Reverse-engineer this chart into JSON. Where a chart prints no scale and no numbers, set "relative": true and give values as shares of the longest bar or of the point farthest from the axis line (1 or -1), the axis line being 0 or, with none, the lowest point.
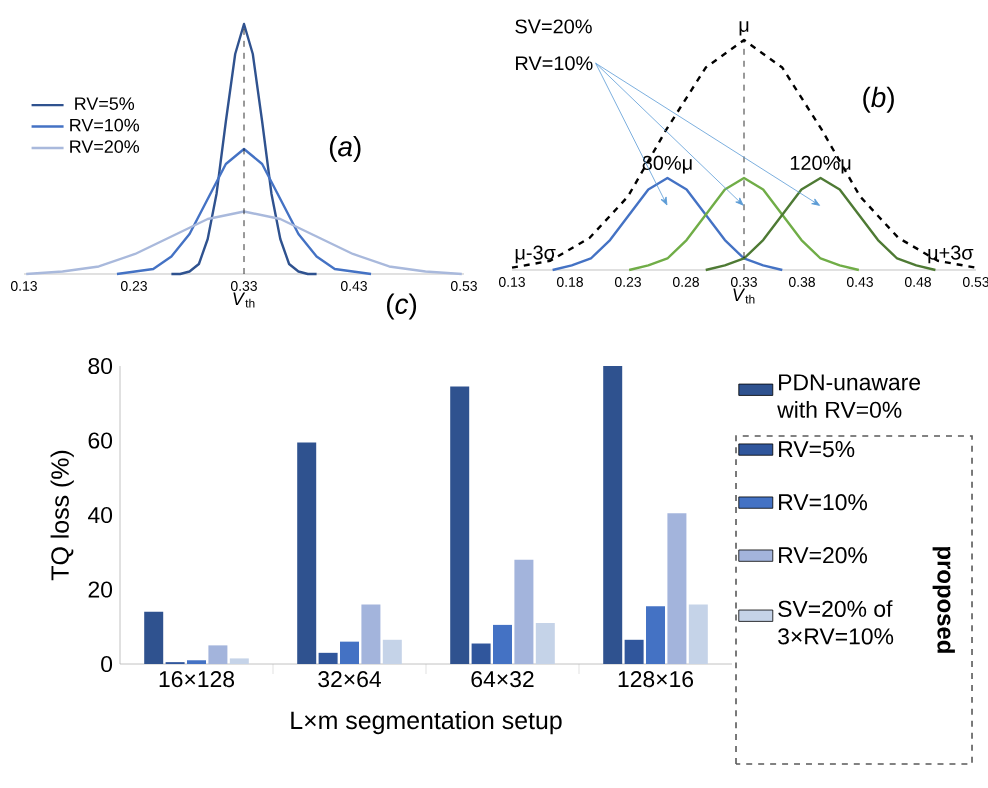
{
  "chart_data": [
    {
      "type": "line",
      "title": "(*a*)",
      "xlabel": "*V*$_{th}$",
      "relative": true,
      "xlim": [
        0.13,
        0.53
      ],
      "xticks": [
        0.13,
        0.23,
        0.33,
        0.43,
        0.53
      ],
      "tick_labels": "x",
      "legend": "top left",
      "ref_lines": [
        {
          "axis": "x",
          "value": 0.33,
          "line_style": "dashed"
        }
      ],
      "series": [
        {
          "name": "RV=5%",
          "color": "#2f528f",
          "x": [
            0.264,
            0.272,
            0.2805,
            0.289,
            0.297,
            0.305,
            0.3135,
            0.322,
            0.33,
            0.338,
            0.3465,
            0.355,
            0.363,
            0.371,
            0.3795,
            0.388,
            0.396
          ],
          "values": [
            0,
            0,
            0.01,
            0.04,
            0.14,
            0.32,
            0.61,
            0.88,
            1,
            0.88,
            0.61,
            0.32,
            0.14,
            0.04,
            0.01,
            0,
            0
          ]
        },
        {
          "name": "RV=10%",
          "color": "#4472c4",
          "x": [
            0.2145,
            0.231,
            0.2475,
            0.264,
            0.2805,
            0.297,
            0.3135,
            0.33,
            0.3465,
            0.363,
            0.3795,
            0.396,
            0.4125,
            0.429,
            0.4455
          ],
          "values": [
            0,
            0.01,
            0.02,
            0.07,
            0.16,
            0.3,
            0.44,
            0.5,
            0.44,
            0.3,
            0.16,
            0.07,
            0.02,
            0.01,
            0
          ]
        },
        {
          "name": "RV=20%",
          "color": "#a9b9dc",
          "x": [
            0.132,
            0.165,
            0.198,
            0.231,
            0.264,
            0.297,
            0.33,
            0.363,
            0.396,
            0.429,
            0.462,
            0.495,
            0.528
          ],
          "values": [
            0,
            0.01,
            0.03,
            0.08,
            0.15,
            0.22,
            0.25,
            0.22,
            0.15,
            0.08,
            0.03,
            0.01,
            0
          ]
        }
      ]
    },
    {
      "type": "line",
      "title": "(*b*)",
      "xlabel": "*V*$_{th}$",
      "relative": true,
      "xlim": [
        0.13,
        0.53
      ],
      "xticks": [
        0.13,
        0.18,
        0.23,
        0.28,
        0.33,
        0.38,
        0.43,
        0.48,
        0.53
      ],
      "tick_labels": "x",
      "ref_lines": [
        {
          "axis": "x",
          "value": 0.33,
          "line_style": "dashed"
        }
      ],
      "annotations": [
        "SV=20%",
        "RV=10%",
        {
          "text": "μ",
          "x": 0.33,
          "y": 1
        },
        {
          "text": "80%μ",
          "x": 0.264,
          "y": 0.4
        },
        {
          "text": "120%μ",
          "x": 0.396,
          "y": 0.4
        },
        {
          "text": "μ-3σ",
          "x": 0.13,
          "y": 0.01
        },
        {
          "text": "μ+3σ",
          "x": 0.53,
          "y": 0.01
        }
      ],
      "series": [
        {
          "color": "#000000",
          "line_style": "dashed",
          "x": [
            0.13,
            0.163,
            0.197,
            0.23,
            0.263,
            0.297,
            0.33,
            0.363,
            0.397,
            0.43,
            0.463,
            0.497,
            0.53
          ],
          "values": [
            0.01,
            0.04,
            0.14,
            0.32,
            0.61,
            0.88,
            1,
            0.88,
            0.61,
            0.32,
            0.14,
            0.04,
            0.01
          ]
        },
        {
          "color": "#4472c4",
          "x": [
            0.165,
            0.1815,
            0.198,
            0.2145,
            0.231,
            0.2475,
            0.264,
            0.2805,
            0.297,
            0.3135,
            0.33,
            0.3465,
            0.363
          ],
          "values": [
            0,
            0.02,
            0.05,
            0.13,
            0.24,
            0.35,
            0.4,
            0.35,
            0.24,
            0.13,
            0.05,
            0.02,
            0
          ]
        },
        {
          "color": "#70ad47",
          "x": [
            0.231,
            0.2475,
            0.264,
            0.2805,
            0.297,
            0.3135,
            0.33,
            0.3465,
            0.363,
            0.3795,
            0.396,
            0.4125,
            0.429
          ],
          "values": [
            0,
            0.02,
            0.05,
            0.13,
            0.24,
            0.35,
            0.4,
            0.35,
            0.24,
            0.13,
            0.05,
            0.02,
            0
          ]
        },
        {
          "color": "#4e7a34",
          "x": [
            0.297,
            0.3135,
            0.33,
            0.3465,
            0.363,
            0.3795,
            0.396,
            0.4125,
            0.429,
            0.4455,
            0.462,
            0.4785,
            0.495
          ],
          "values": [
            0,
            0.02,
            0.05,
            0.13,
            0.24,
            0.35,
            0.4,
            0.35,
            0.24,
            0.13,
            0.05,
            0.02,
            0
          ]
        }
      ]
    },
    {
      "type": "bar",
      "title": "(*c*)",
      "ylabel": "TQ loss (%)",
      "xlabel": "L×m segmentation setup",
      "categories": [
        "16×128",
        "32×64",
        "64×32",
        "128×16"
      ],
      "ylim": [
        0,
        80
      ],
      "yticks": [
        0,
        20,
        40,
        60,
        80
      ],
      "legend": "right",
      "annotations": [
        "proposed"
      ],
      "series": [
        {
          "name": "PDN-unaware with RV=0%",
          "color": "#2f528f",
          "values": [
            14,
            59.5,
            74.5,
            80
          ]
        },
        {
          "name": "RV=5%",
          "color": "#30569c",
          "values": [
            0.5,
            3,
            5.5,
            6.5
          ]
        },
        {
          "name": "RV=10%",
          "color": "#4472c4",
          "values": [
            1,
            6,
            10.5,
            15.5
          ]
        },
        {
          "name": "RV=20%",
          "color": "#a3b4dc",
          "values": [
            5,
            16,
            28,
            40.5
          ]
        },
        {
          "name": "SV=20% of 3×RV=10%",
          "color": "#c5d3e8",
          "values": [
            1.5,
            6.5,
            11,
            16
          ]
        }
      ]
    }
  ]
}
